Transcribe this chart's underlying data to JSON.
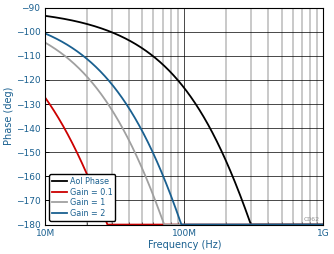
{
  "title": "",
  "xlabel": "Frequency (Hz)",
  "ylabel": "Phase (deg)",
  "xlim_log": [
    10000000.0,
    1000000000.0
  ],
  "ylim": [
    -180,
    -90
  ],
  "yticks": [
    -180,
    -170,
    -160,
    -150,
    -140,
    -130,
    -120,
    -110,
    -100,
    -90
  ],
  "legend_entries": [
    "Aol Phase",
    "Gain = 0.1",
    "Gain = 1",
    "Gain = 2"
  ],
  "colors": [
    "#000000",
    "#cc0000",
    "#a0a0a0",
    "#1a6090"
  ],
  "linewidths": [
    1.3,
    1.3,
    1.3,
    1.3
  ],
  "background_color": "#ffffff",
  "label_color": "#1a6090",
  "watermark": "C062"
}
